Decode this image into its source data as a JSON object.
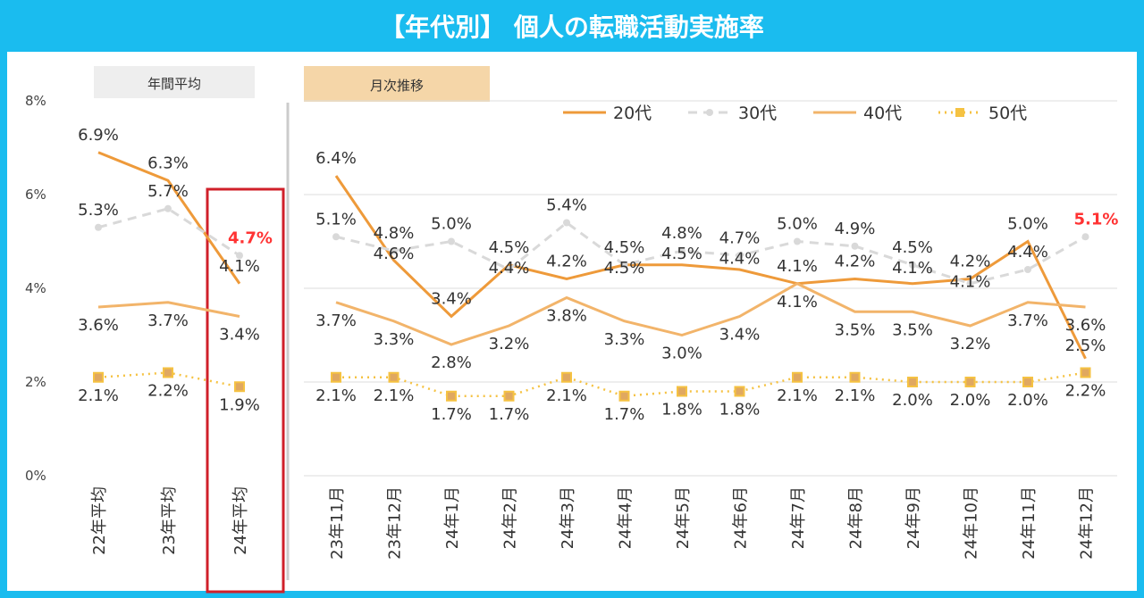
{
  "title": "【年代別】 個人の転職活動実施率",
  "chart_data": [
    {
      "type": "line",
      "panel_label": "年間平均",
      "categories": [
        "22年平均",
        "23年平均",
        "24年平均"
      ],
      "yticks": [
        "0%",
        "2%",
        "4%",
        "6%",
        "8%"
      ],
      "ylim": [
        0,
        8
      ],
      "series": [
        {
          "name": "20代",
          "values": [
            6.9,
            6.3,
            4.1
          ],
          "labels": [
            "6.9%",
            "6.3%",
            "4.1%"
          ]
        },
        {
          "name": "30代",
          "values": [
            5.3,
            5.7,
            4.7
          ],
          "labels": [
            "5.3%",
            "5.7%",
            "4.7%"
          ]
        },
        {
          "name": "40代",
          "values": [
            3.6,
            3.7,
            3.4
          ],
          "labels": [
            "3.6%",
            "3.7%",
            "3.4%"
          ]
        },
        {
          "name": "50代",
          "values": [
            2.1,
            2.2,
            1.9
          ],
          "labels": [
            "2.1%",
            "2.2%",
            "1.9%"
          ]
        }
      ],
      "highlight": {
        "category": "24年平均",
        "series": "30代",
        "label": "4.7%"
      }
    },
    {
      "type": "line",
      "panel_label": "月次推移",
      "categories": [
        "23年11月",
        "23年12月",
        "24年1月",
        "24年2月",
        "24年3月",
        "24年4月",
        "24年5月",
        "24年6月",
        "24年7月",
        "24年8月",
        "24年9月",
        "24年10月",
        "24年11月",
        "24年12月"
      ],
      "ylim": [
        0,
        8
      ],
      "legend": [
        "20代",
        "30代",
        "40代",
        "50代"
      ],
      "legend_position": "top-right",
      "series": [
        {
          "name": "20代",
          "values": [
            6.4,
            4.6,
            3.4,
            4.5,
            4.2,
            4.5,
            4.5,
            4.4,
            4.1,
            4.2,
            4.1,
            4.2,
            5.0,
            2.5
          ]
        },
        {
          "name": "30代",
          "values": [
            5.1,
            4.8,
            5.0,
            4.4,
            5.4,
            4.5,
            4.8,
            4.7,
            5.0,
            4.9,
            4.5,
            4.1,
            4.4,
            5.1
          ]
        },
        {
          "name": "40代",
          "values": [
            3.7,
            3.3,
            2.8,
            3.2,
            3.8,
            3.3,
            3.0,
            3.4,
            4.1,
            3.5,
            3.5,
            3.2,
            3.7,
            3.6
          ]
        },
        {
          "name": "50代",
          "values": [
            2.1,
            2.1,
            1.7,
            1.7,
            2.1,
            1.7,
            1.8,
            1.8,
            2.1,
            2.1,
            2.0,
            2.0,
            2.0,
            2.2
          ]
        }
      ],
      "highlight": {
        "category": "24年12月",
        "series": "30代",
        "label": "5.1%"
      }
    }
  ],
  "colors": {
    "s20": "#EE9A3A",
    "s30": "#D9D9D9",
    "s40": "#F2B46A",
    "s50": "#F5C242",
    "highlight": "#FF3333",
    "title_bg": "#1ABCEF"
  }
}
